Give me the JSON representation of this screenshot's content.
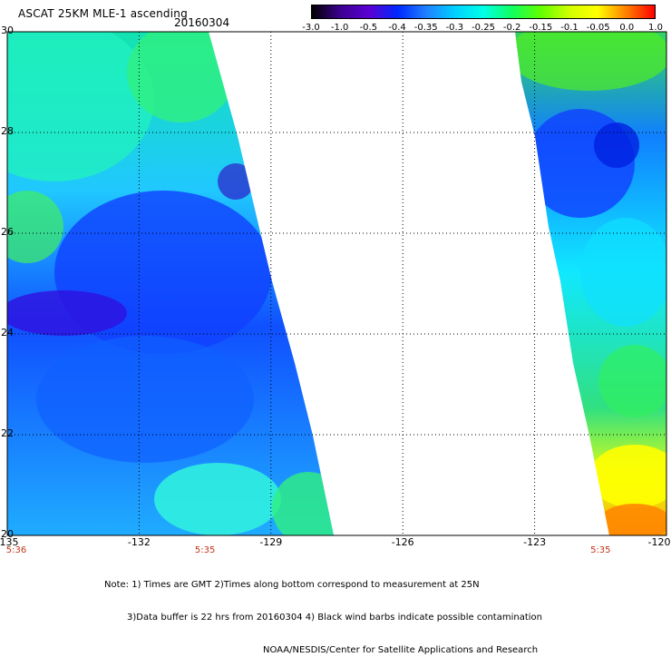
{
  "title": "ASCAT 25KM MLE-1 ascending",
  "date": "20160304",
  "colorbar": {
    "labels": [
      "-3.0",
      "-1.0",
      "-0.5",
      "-0.4",
      "-0.35",
      "-0.3",
      "-0.25",
      "-0.2",
      "-0.15",
      "-0.1",
      "-0.05",
      "0.0",
      "1.0"
    ],
    "colors": [
      "#000000",
      "#3c0090",
      "#5a00d2",
      "#0028ff",
      "#2080ff",
      "#00d0ff",
      "#00ffe8",
      "#10ff60",
      "#60ff00",
      "#d0ff00",
      "#ffff00",
      "#ff8000",
      "#ff0000"
    ]
  },
  "axes": {
    "lon_labels": [
      "-135",
      "-132",
      "-129",
      "-126",
      "-123",
      "-120"
    ],
    "lat_labels": [
      "30",
      "28",
      "26",
      "24",
      "22",
      "20"
    ]
  },
  "times": [
    {
      "lon": "-135",
      "label": "5:36"
    },
    {
      "lon": "-130.5",
      "label": "5:35"
    },
    {
      "lon": "-121.5",
      "label": "5:35"
    }
  ],
  "notes": [
    "Note: 1) Times are GMT 2)Times along bottom correspond to measurement at 25N",
    "3)Data buffer is 22 hrs from 20160304 4) Black wind barbs indicate possible contamination",
    "NOAA/NESDIS/Center for Satellite Applications and Research"
  ]
}
